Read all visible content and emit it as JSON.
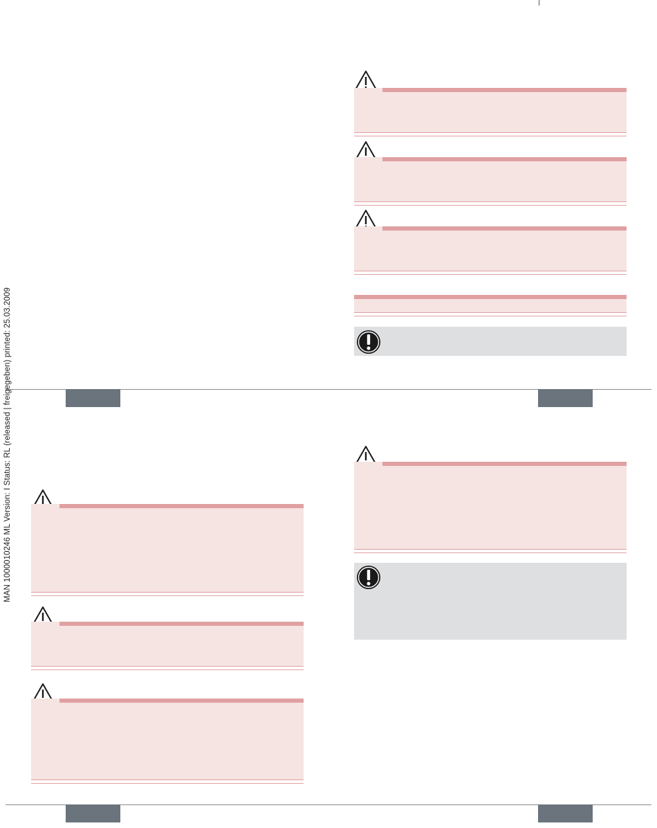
{
  "sidebar": {
    "document_info": "MAN  1000010246  ML  Version: I  Status: RL  (released | freigegeben)  printed: 25.03.2009"
  },
  "colors": {
    "warning_fill": "#f5e4e2",
    "warning_bar": "#e0a0a2",
    "note_fill": "#dedfe1",
    "page_tab": "#6b747d"
  },
  "icons": {
    "warning": "warning-triangle-icon",
    "notice": "exclamation-circle-icon"
  }
}
